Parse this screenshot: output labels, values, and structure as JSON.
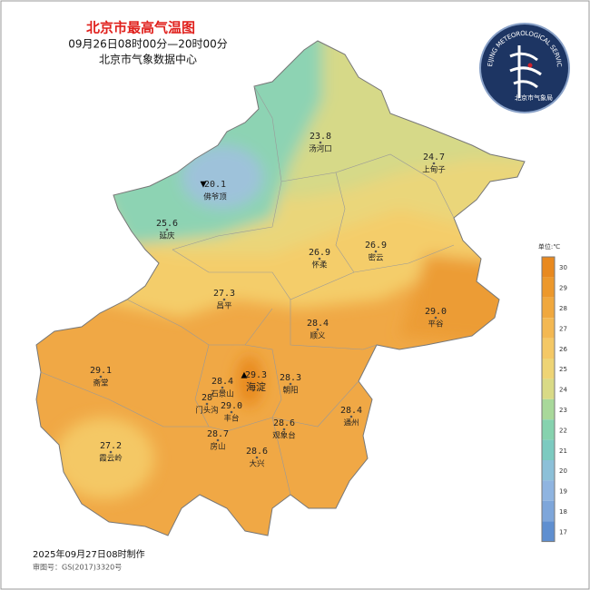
{
  "header": {
    "title": "北京市最高气温图",
    "period": "09月26日08时00分—20时00分",
    "source": "北京市气象数据中心"
  },
  "logo": {
    "ring_text": "BEIJING METEOROLOGICAL SERVICE",
    "name": "北京市气象局"
  },
  "stations": [
    {
      "value": "23.8",
      "name": "汤河口"
    },
    {
      "value": "24.7",
      "name": "上甸子"
    },
    {
      "marker": "▼",
      "value": "20.1",
      "name": "佛爷顶"
    },
    {
      "value": "25.6",
      "name": "延庆"
    },
    {
      "value": "26.9",
      "name": "怀柔"
    },
    {
      "value": "26.9",
      "name": "密云"
    },
    {
      "value": "27.3",
      "name": "昌平"
    },
    {
      "value": "29.0",
      "name": "平谷"
    },
    {
      "value": "28.4",
      "name": "顺义"
    },
    {
      "value": "29.1",
      "name": "斋堂"
    },
    {
      "marker": "▲",
      "value": "29.3",
      "name": "海淀"
    },
    {
      "value": "28.4",
      "name": "石景山"
    },
    {
      "value": "28.3",
      "name": "朝阳"
    },
    {
      "value": "28",
      "name": "门头沟"
    },
    {
      "value": "29.0",
      "name": "丰台"
    },
    {
      "value": "28.4",
      "name": "通州"
    },
    {
      "value": "28.6",
      "name": "观象台"
    },
    {
      "value": "28.7",
      "name": "房山"
    },
    {
      "value": "27.2",
      "name": "霞云岭"
    },
    {
      "value": "28.6",
      "name": "大兴"
    }
  ],
  "legend": {
    "unit": "单位:℃",
    "ticks": [
      30,
      29,
      28,
      27,
      26,
      25,
      24,
      23,
      22,
      21,
      20,
      19,
      18,
      17
    ],
    "colors": [
      "#e8891f",
      "#ec982c",
      "#f0a83e",
      "#f3b852",
      "#f4c865",
      "#eed475",
      "#d9da86",
      "#a8d89a",
      "#86d2ae",
      "#7ccac0",
      "#8cc0d8",
      "#8fb4e0",
      "#7ea6da",
      "#5f8fd0"
    ]
  },
  "footer": {
    "made": "2025年09月27日08时制作",
    "approval": "审图号：GS(2017)3320号"
  }
}
